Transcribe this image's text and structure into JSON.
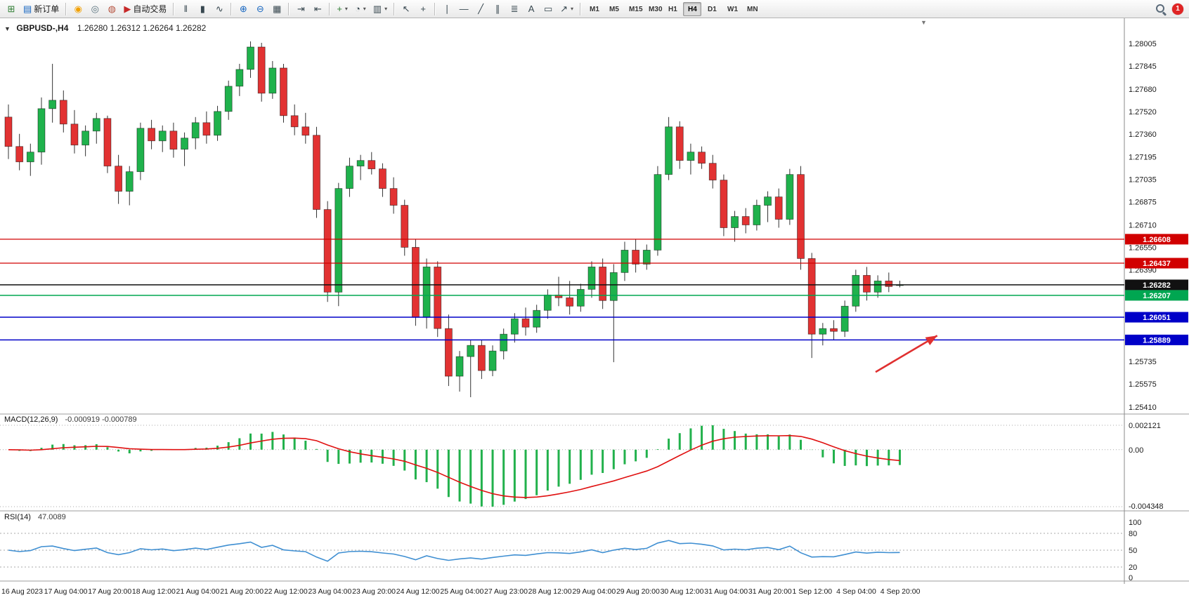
{
  "toolbar": {
    "caret_glyph": "▾",
    "notification_count": "1",
    "groups": [
      {
        "items": [
          {
            "name": "new-chart",
            "glyph": "⊞",
            "color": "#2e7d32"
          },
          {
            "name": "new-order",
            "glyph": "▤",
            "color": "#1565c0",
            "label": "新订单"
          }
        ]
      },
      {
        "items": [
          {
            "name": "mql5-community",
            "glyph": "◉",
            "color": "#f2a000"
          },
          {
            "name": "metaeditor",
            "glyph": "◎",
            "color": "#546e7a"
          },
          {
            "name": "market",
            "glyph": "◍",
            "color": "#b5503c"
          },
          {
            "name": "autotrading",
            "glyph": "▶",
            "color": "#c62828",
            "label": "自动交易"
          }
        ]
      },
      {
        "items": [
          {
            "name": "bar-chart-mode",
            "glyph": "ǁ",
            "color": "#37474f"
          },
          {
            "name": "candlestick-mode",
            "glyph": "▮",
            "color": "#37474f"
          },
          {
            "name": "line-chart-mode",
            "glyph": "∿",
            "color": "#37474f"
          }
        ]
      },
      {
        "items": [
          {
            "name": "zoom-in",
            "glyph": "⊕",
            "color": "#1565c0"
          },
          {
            "name": "zoom-out",
            "glyph": "⊖",
            "color": "#1565c0"
          },
          {
            "name": "tile-windows",
            "glyph": "▦",
            "color": "#37474f"
          }
        ]
      },
      {
        "items": [
          {
            "name": "auto-scroll",
            "glyph": "⇥",
            "color": "#37474f"
          },
          {
            "name": "chart-shift-toggle",
            "glyph": "⇤",
            "color": "#37474f"
          }
        ]
      },
      {
        "items": [
          {
            "name": "indicators",
            "glyph": "+",
            "color": "#2e7d32",
            "caret": true
          },
          {
            "name": "periods",
            "glyph": "◔",
            "color": "#37474f",
            "caret": true
          },
          {
            "name": "templates",
            "glyph": "▥",
            "color": "#37474f",
            "caret": true
          }
        ]
      },
      {
        "items": [
          {
            "name": "cursor",
            "glyph": "↖",
            "color": "#37474f"
          },
          {
            "name": "crosshair",
            "glyph": "+",
            "color": "#37474f"
          }
        ]
      },
      {
        "items": [
          {
            "name": "vertical-line",
            "glyph": "∣",
            "color": "#37474f"
          },
          {
            "name": "horizontal-line",
            "glyph": "—",
            "color": "#37474f"
          },
          {
            "name": "trendline",
            "glyph": "╱",
            "color": "#37474f"
          },
          {
            "name": "equidistant-channel",
            "glyph": "∥",
            "color": "#37474f"
          },
          {
            "name": "fibonacci",
            "glyph": "≣",
            "color": "#37474f"
          },
          {
            "name": "text",
            "glyph": "A",
            "color": "#37474f"
          },
          {
            "name": "text-label",
            "glyph": "▭",
            "color": "#37474f"
          },
          {
            "name": "arrow-objects",
            "glyph": "↗",
            "color": "#37474f",
            "caret": true
          }
        ]
      }
    ],
    "timeframes": [
      "M1",
      "M5",
      "M15",
      "M30",
      "H1",
      "H4",
      "D1",
      "W1",
      "MN"
    ],
    "active_timeframe": "H4"
  },
  "header": {
    "symbol": "GBPUSD-,H4",
    "ohlc": "1.26280 1.26312 1.26264 1.26282",
    "open": "1.26280",
    "high": "1.26312",
    "low": "1.26264",
    "close": "1.26282"
  },
  "icons": {
    "one_click": "▼",
    "shift_marker": "▼"
  },
  "chart_data": {
    "type": "candlestick",
    "symbol": "GBPUSD-",
    "timeframe": "H4",
    "price_axis_labels": [
      "1.28005",
      "1.27845",
      "1.27680",
      "1.27520",
      "1.27360",
      "1.27195",
      "1.27035",
      "1.26875",
      "1.26710",
      "1.26550",
      "1.26390",
      "1.25735",
      "1.25575",
      "1.25410"
    ],
    "y_axis_range": {
      "top_price": 1.28005,
      "bottom_price": 1.2541
    },
    "time_labels": [
      "16 Aug 2023",
      "17 Aug 04:00",
      "17 Aug 20:00",
      "18 Aug 12:00",
      "21 Aug 04:00",
      "21 Aug 20:00",
      "22 Aug 12:00",
      "23 Aug 04:00",
      "23 Aug 20:00",
      "24 Aug 12:00",
      "25 Aug 04:00",
      "27 Aug 23:00",
      "28 Aug 12:00",
      "29 Aug 04:00",
      "29 Aug 20:00",
      "30 Aug 12:00",
      "31 Aug 04:00",
      "31 Aug 20:00",
      "1 Sep 12:00",
      "4 Sep 04:00",
      "4 Sep 20:00"
    ],
    "label_every_n_candles": 4,
    "levels": [
      {
        "price": "1.26608",
        "value": 1.26608,
        "color": "#d10000",
        "kind": "resistance-line"
      },
      {
        "price": "1.26437",
        "value": 1.26437,
        "color": "#d10000",
        "kind": "resistance-line"
      },
      {
        "price": "1.26282",
        "value": 1.26282,
        "color": "#111111",
        "kind": "current-price-line"
      },
      {
        "price": "1.26207",
        "value": 1.26207,
        "color": "#00a651",
        "kind": "support-line"
      },
      {
        "price": "1.26051",
        "value": 1.26051,
        "color": "#0000c8",
        "kind": "support-line"
      },
      {
        "price": "1.25889",
        "value": 1.25889,
        "color": "#0000c8",
        "kind": "support-line"
      }
    ],
    "colors": {
      "up": "#1fb24c",
      "down": "#e23232",
      "wick": "#333333",
      "macd_bar": "#22b14c",
      "macd_signal": "#e01010",
      "rsi_line": "#3f8fd2"
    },
    "arrow_annotation": {
      "from_index": 78.8,
      "from_price": 1.2566,
      "to_index": 84.4,
      "to_price": 1.2592,
      "color": "#e03030"
    },
    "candles": [
      [
        1.2748,
        1.2757,
        1.2718,
        1.2727
      ],
      [
        1.2727,
        1.2736,
        1.271,
        1.2716
      ],
      [
        1.2716,
        1.2729,
        1.2706,
        1.2723
      ],
      [
        1.2723,
        1.2762,
        1.2714,
        1.2754
      ],
      [
        1.2754,
        1.2786,
        1.2744,
        1.276
      ],
      [
        1.276,
        1.2767,
        1.2737,
        1.2743
      ],
      [
        1.2743,
        1.2753,
        1.2722,
        1.2728
      ],
      [
        1.2728,
        1.2742,
        1.272,
        1.2738
      ],
      [
        1.2738,
        1.2751,
        1.2729,
        1.2747
      ],
      [
        1.2747,
        1.2749,
        1.2708,
        1.2713
      ],
      [
        1.2713,
        1.2721,
        1.2686,
        1.2695
      ],
      [
        1.2695,
        1.2713,
        1.2685,
        1.2709
      ],
      [
        1.2709,
        1.2744,
        1.2703,
        1.274
      ],
      [
        1.274,
        1.2746,
        1.2725,
        1.2731
      ],
      [
        1.2731,
        1.2742,
        1.2723,
        1.2738
      ],
      [
        1.2738,
        1.2744,
        1.2719,
        1.2725
      ],
      [
        1.2725,
        1.2737,
        1.2713,
        1.2733
      ],
      [
        1.2733,
        1.2748,
        1.2725,
        1.2744
      ],
      [
        1.2744,
        1.2752,
        1.2729,
        1.2735
      ],
      [
        1.2735,
        1.2756,
        1.2731,
        1.2752
      ],
      [
        1.2752,
        1.2774,
        1.2746,
        1.277
      ],
      [
        1.277,
        1.2786,
        1.2763,
        1.2782
      ],
      [
        1.2782,
        1.2802,
        1.2776,
        1.2798
      ],
      [
        1.2798,
        1.2801,
        1.2759,
        1.2765
      ],
      [
        1.2765,
        1.2788,
        1.2761,
        1.2783
      ],
      [
        1.2783,
        1.2786,
        1.2744,
        1.2749
      ],
      [
        1.2749,
        1.2757,
        1.2735,
        1.2741
      ],
      [
        1.2741,
        1.2751,
        1.2729,
        1.2735
      ],
      [
        1.2735,
        1.2741,
        1.2676,
        1.2682
      ],
      [
        1.2682,
        1.2688,
        1.2616,
        1.2623
      ],
      [
        1.2623,
        1.2701,
        1.2613,
        1.2697
      ],
      [
        1.2697,
        1.2719,
        1.2691,
        1.2713
      ],
      [
        1.2713,
        1.2721,
        1.2703,
        1.2717
      ],
      [
        1.2717,
        1.2723,
        1.2707,
        1.2711
      ],
      [
        1.2711,
        1.2715,
        1.2691,
        1.2697
      ],
      [
        1.2697,
        1.2705,
        1.2679,
        1.2685
      ],
      [
        1.2685,
        1.2689,
        1.2649,
        1.2655
      ],
      [
        1.2655,
        1.2661,
        1.2599,
        1.2605
      ],
      [
        1.2605,
        1.2647,
        1.2597,
        1.2641
      ],
      [
        1.2641,
        1.2645,
        1.2591,
        1.2597
      ],
      [
        1.2597,
        1.2607,
        1.2556,
        1.2563
      ],
      [
        1.2563,
        1.2581,
        1.2552,
        1.2577
      ],
      [
        1.2577,
        1.2589,
        1.2548,
        1.2585
      ],
      [
        1.2585,
        1.2589,
        1.2561,
        1.2567
      ],
      [
        1.2567,
        1.2585,
        1.2563,
        1.2581
      ],
      [
        1.2581,
        1.2597,
        1.2575,
        1.2593
      ],
      [
        1.2593,
        1.2608,
        1.2587,
        1.2604
      ],
      [
        1.2604,
        1.2612,
        1.2592,
        1.2598
      ],
      [
        1.2598,
        1.2614,
        1.2594,
        1.261
      ],
      [
        1.261,
        1.2625,
        1.2604,
        1.2621
      ],
      [
        1.2621,
        1.2634,
        1.2613,
        1.2619
      ],
      [
        1.2619,
        1.2631,
        1.2607,
        1.2613
      ],
      [
        1.2613,
        1.2629,
        1.2609,
        1.2625
      ],
      [
        1.2625,
        1.2645,
        1.2619,
        1.2641
      ],
      [
        1.2641,
        1.2647,
        1.2611,
        1.2617
      ],
      [
        1.2617,
        1.2643,
        1.2573,
        1.2637
      ],
      [
        1.2637,
        1.2659,
        1.2631,
        1.2653
      ],
      [
        1.2653,
        1.2661,
        1.2637,
        1.2643
      ],
      [
        1.2643,
        1.2657,
        1.2639,
        1.2653
      ],
      [
        1.2653,
        1.2713,
        1.2649,
        1.2707
      ],
      [
        1.2707,
        1.2748,
        1.2703,
        1.2741
      ],
      [
        1.2741,
        1.2745,
        1.2711,
        1.2717
      ],
      [
        1.2717,
        1.2729,
        1.2707,
        1.2723
      ],
      [
        1.2723,
        1.2727,
        1.2711,
        1.2715
      ],
      [
        1.2715,
        1.2721,
        1.2697,
        1.2703
      ],
      [
        1.2703,
        1.2707,
        1.2663,
        1.2669
      ],
      [
        1.2669,
        1.2681,
        1.2659,
        1.2677
      ],
      [
        1.2677,
        1.2683,
        1.2665,
        1.2671
      ],
      [
        1.2671,
        1.2689,
        1.2667,
        1.2685
      ],
      [
        1.2685,
        1.2695,
        1.2673,
        1.2691
      ],
      [
        1.2691,
        1.2697,
        1.2669,
        1.2675
      ],
      [
        1.2675,
        1.2711,
        1.2671,
        1.2707
      ],
      [
        1.2707,
        1.2713,
        1.2639,
        1.2647
      ],
      [
        1.2647,
        1.2651,
        1.2576,
        1.2593
      ],
      [
        1.2593,
        1.2601,
        1.2585,
        1.2597
      ],
      [
        1.2597,
        1.2603,
        1.2589,
        1.2595
      ],
      [
        1.2595,
        1.2617,
        1.2591,
        1.2613
      ],
      [
        1.2613,
        1.2639,
        1.2609,
        1.2635
      ],
      [
        1.2635,
        1.2641,
        1.2617,
        1.2623
      ],
      [
        1.2623,
        1.2635,
        1.2619,
        1.2631
      ],
      [
        1.2631,
        1.2637,
        1.2623,
        1.2627
      ],
      [
        1.2628,
        1.26312,
        1.26264,
        1.26282
      ]
    ]
  },
  "macd_panel": {
    "title": "MACD(12,26,9)",
    "values": "-0.000919 -0.000789",
    "scale_labels": [
      "0.002121",
      "0.00",
      "-0.004348"
    ],
    "fast": 12,
    "slow": 26,
    "signal": 9
  },
  "rsi_panel": {
    "title": "RSI(14)",
    "value": "47.0089",
    "period": 14,
    "scale_labels": [
      "100",
      "80",
      "50",
      "20",
      "0"
    ],
    "levels": [
      80,
      50,
      20
    ]
  }
}
